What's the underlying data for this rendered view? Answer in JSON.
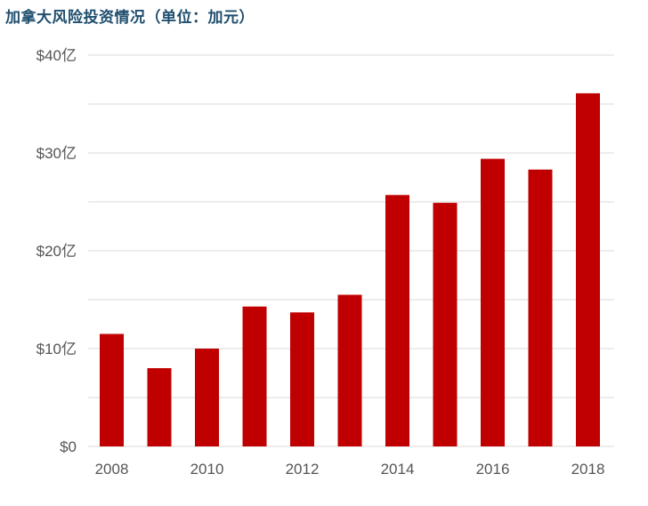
{
  "chart_data": {
    "type": "bar",
    "title": "加拿大风险投资情况（单位：加元）",
    "categories": [
      "2008",
      "2009",
      "2010",
      "2011",
      "2012",
      "2013",
      "2014",
      "2015",
      "2016",
      "2017",
      "2018"
    ],
    "values": [
      11.5,
      8.0,
      10.0,
      14.3,
      13.7,
      15.5,
      25.7,
      24.9,
      29.4,
      28.3,
      36.1
    ],
    "ylim": [
      0,
      40
    ],
    "y_ticks": [
      0,
      10,
      20,
      30,
      40
    ],
    "y_tick_labels": [
      "$0",
      "$10亿",
      "$20亿",
      "$30亿",
      "$40亿"
    ],
    "x_tick_labels": [
      "2008",
      "",
      "2010",
      "",
      "2012",
      "",
      "2014",
      "",
      "2016",
      "",
      "2018"
    ],
    "bar_color": "#c00000",
    "grid_color": "#d9d9d9",
    "grid": true,
    "xlabel": "",
    "ylabel": ""
  }
}
